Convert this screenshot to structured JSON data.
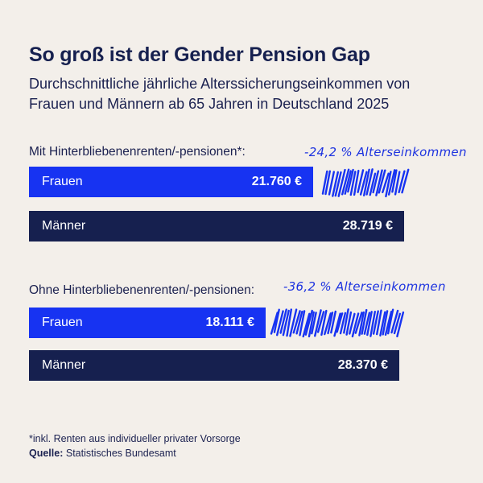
{
  "title": "So groß ist der Gender Pension Gap",
  "subtitle": "Durchschnittliche jährliche Alterssicherungseinkommen von Frauen und Männern ab 65 Jahren in Deutschland 2025",
  "colors": {
    "frauen": "#1733f2",
    "maenner": "#16204f",
    "background": "#f3efea"
  },
  "chart_data": {
    "type": "bar",
    "orientation": "horizontal",
    "groups": [
      {
        "label": "Mit Hinterbliebenenrenten/-pensionen*:",
        "gap_note": "-24,2 % Alterseinkommen",
        "bars": [
          {
            "label": "Frauen",
            "value": 21760,
            "value_label": "21.760 €"
          },
          {
            "label": "Männer",
            "value": 28719,
            "value_label": "28.719 €"
          }
        ]
      },
      {
        "label": "Ohne Hinterbliebenenrenten/-pensionen:",
        "gap_note": "-36,2 % Alterseinkommen",
        "bars": [
          {
            "label": "Frauen",
            "value": 18111,
            "value_label": "18.111 €"
          },
          {
            "label": "Männer",
            "value": 28370,
            "value_label": "28.370 €"
          }
        ]
      }
    ]
  },
  "footnote": "*inkl. Renten aus individueller privater Vorsorge",
  "source_label": "Quelle:",
  "source_text": "Statistisches Bundesamt"
}
